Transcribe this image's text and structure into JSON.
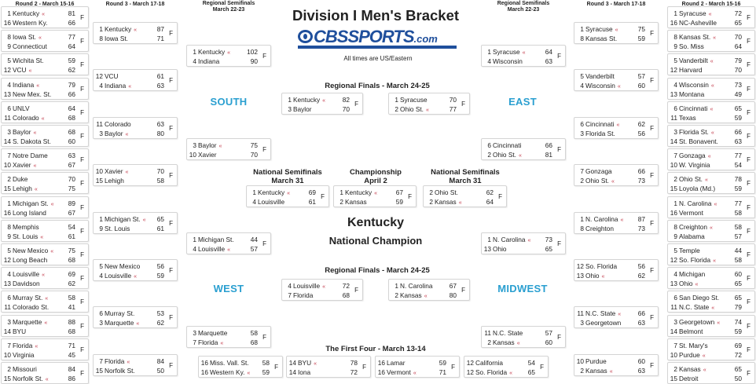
{
  "title": "Division I Men's Bracket",
  "logo_text": "CBSSPORTS.com",
  "timezone_note": "All times are US/Eastern",
  "colors": {
    "region": "#2a9fd0",
    "winner_marker": "#c23a4a",
    "logo": "#1f4f9c"
  },
  "winner_marker": "«",
  "headers": {
    "round2": "Round 2 - March 15-16",
    "round3": "Round 3 - March 17-18",
    "regional_semis": "Regional Semifinals",
    "regional_semis_date": "March 22-23",
    "regional_finals": "Regional Finals - March 24-25",
    "national_semis": "National Semifinals",
    "national_semis_date": "March 31",
    "championship": "Championship",
    "championship_date": "April 2",
    "first_four": "The First Four - March 13-14"
  },
  "regions": {
    "south": "SOUTH",
    "east": "EAST",
    "west": "WEST",
    "midwest": "MIDWEST"
  },
  "champion": {
    "team": "Kentucky",
    "label": "National Champion"
  },
  "left_round2": [
    {
      "status": "F",
      "teams": [
        {
          "seed": "1",
          "name": "Kentucky",
          "score": "81",
          "winner": true
        },
        {
          "seed": "16",
          "name": "Western Ky.",
          "score": "66"
        }
      ]
    },
    {
      "status": "F",
      "teams": [
        {
          "seed": "8",
          "name": "Iowa St.",
          "score": "77",
          "winner": true
        },
        {
          "seed": "9",
          "name": "Connecticut",
          "score": "64"
        }
      ]
    },
    {
      "status": "F",
      "teams": [
        {
          "seed": "5",
          "name": "Wichita St.",
          "score": "59"
        },
        {
          "seed": "12",
          "name": "VCU",
          "score": "62",
          "winner": true
        }
      ]
    },
    {
      "status": "F",
      "teams": [
        {
          "seed": "4",
          "name": "Indiana",
          "score": "79",
          "winner": true
        },
        {
          "seed": "13",
          "name": "New Mex. St.",
          "score": "66"
        }
      ]
    },
    {
      "status": "F",
      "teams": [
        {
          "seed": "6",
          "name": "UNLV",
          "score": "64"
        },
        {
          "seed": "11",
          "name": "Colorado",
          "score": "68",
          "winner": true
        }
      ]
    },
    {
      "status": "F",
      "teams": [
        {
          "seed": "3",
          "name": "Baylor",
          "score": "68",
          "winner": true
        },
        {
          "seed": "14",
          "name": "S. Dakota St.",
          "score": "60"
        }
      ]
    },
    {
      "status": "F",
      "teams": [
        {
          "seed": "7",
          "name": "Notre Dame",
          "score": "63"
        },
        {
          "seed": "10",
          "name": "Xavier",
          "score": "67",
          "winner": true
        }
      ]
    },
    {
      "status": "F",
      "teams": [
        {
          "seed": "2",
          "name": "Duke",
          "score": "70"
        },
        {
          "seed": "15",
          "name": "Lehigh",
          "score": "75",
          "winner": true
        }
      ]
    },
    {
      "status": "F",
      "teams": [
        {
          "seed": "1",
          "name": "Michigan St.",
          "score": "89",
          "winner": true
        },
        {
          "seed": "16",
          "name": "Long Island",
          "score": "67"
        }
      ]
    },
    {
      "status": "F",
      "teams": [
        {
          "seed": "8",
          "name": "Memphis",
          "score": "54"
        },
        {
          "seed": "9",
          "name": "St. Louis",
          "score": "61",
          "winner": true
        }
      ]
    },
    {
      "status": "F",
      "teams": [
        {
          "seed": "5",
          "name": "New Mexico",
          "score": "75",
          "winner": true
        },
        {
          "seed": "12",
          "name": "Long Beach",
          "score": "68"
        }
      ]
    },
    {
      "status": "F",
      "teams": [
        {
          "seed": "4",
          "name": "Louisville",
          "score": "69",
          "winner": true
        },
        {
          "seed": "13",
          "name": "Davidson",
          "score": "62"
        }
      ]
    },
    {
      "status": "F",
      "teams": [
        {
          "seed": "6",
          "name": "Murray St.",
          "score": "58",
          "winner": true
        },
        {
          "seed": "11",
          "name": "Colorado St.",
          "score": "41"
        }
      ]
    },
    {
      "status": "F",
      "teams": [
        {
          "seed": "3",
          "name": "Marquette",
          "score": "88",
          "winner": true
        },
        {
          "seed": "14",
          "name": "BYU",
          "score": "68"
        }
      ]
    },
    {
      "status": "F",
      "teams": [
        {
          "seed": "7",
          "name": "Florida",
          "score": "71",
          "winner": true
        },
        {
          "seed": "10",
          "name": "Virginia",
          "score": "45"
        }
      ]
    },
    {
      "status": "F",
      "teams": [
        {
          "seed": "2",
          "name": "Missouri",
          "score": "84"
        },
        {
          "seed": "15",
          "name": "Norfolk St.",
          "score": "86",
          "winner": true
        }
      ]
    }
  ],
  "left_round3": [
    {
      "status": "F",
      "teams": [
        {
          "seed": "1",
          "name": "Kentucky",
          "score": "87",
          "winner": true
        },
        {
          "seed": "8",
          "name": "Iowa St.",
          "score": "71"
        }
      ]
    },
    {
      "status": "F",
      "teams": [
        {
          "seed": "12",
          "name": "VCU",
          "score": "61"
        },
        {
          "seed": "4",
          "name": "Indiana",
          "score": "63",
          "winner": true
        }
      ]
    },
    {
      "status": "F",
      "teams": [
        {
          "seed": "11",
          "name": "Colorado",
          "score": "63"
        },
        {
          "seed": "3",
          "name": "Baylor",
          "score": "80",
          "winner": true
        }
      ]
    },
    {
      "status": "F",
      "teams": [
        {
          "seed": "10",
          "name": "Xavier",
          "score": "70",
          "winner": true
        },
        {
          "seed": "15",
          "name": "Lehigh",
          "score": "58"
        }
      ]
    },
    {
      "status": "F",
      "teams": [
        {
          "seed": "1",
          "name": "Michigan St.",
          "score": "65",
          "winner": true
        },
        {
          "seed": "9",
          "name": "St. Louis",
          "score": "61"
        }
      ]
    },
    {
      "status": "F",
      "teams": [
        {
          "seed": "5",
          "name": "New Mexico",
          "score": "56"
        },
        {
          "seed": "4",
          "name": "Louisville",
          "score": "59",
          "winner": true
        }
      ]
    },
    {
      "status": "F",
      "teams": [
        {
          "seed": "6",
          "name": "Murray St.",
          "score": "53"
        },
        {
          "seed": "3",
          "name": "Marquette",
          "score": "62",
          "winner": true
        }
      ]
    },
    {
      "status": "F",
      "teams": [
        {
          "seed": "7",
          "name": "Florida",
          "score": "84",
          "winner": true
        },
        {
          "seed": "15",
          "name": "Norfolk St.",
          "score": "50"
        }
      ]
    }
  ],
  "left_regional_semis": [
    {
      "status": "F",
      "teams": [
        {
          "seed": "1",
          "name": "Kentucky",
          "score": "102",
          "winner": true
        },
        {
          "seed": "4",
          "name": "Indiana",
          "score": "90"
        }
      ]
    },
    {
      "status": "F",
      "teams": [
        {
          "seed": "3",
          "name": "Baylor",
          "score": "75",
          "winner": true
        },
        {
          "seed": "10",
          "name": "Xavier",
          "score": "70"
        }
      ]
    },
    {
      "status": "F",
      "teams": [
        {
          "seed": "1",
          "name": "Michigan St.",
          "score": "44"
        },
        {
          "seed": "4",
          "name": "Louisville",
          "score": "57",
          "winner": true
        }
      ]
    },
    {
      "status": "F",
      "teams": [
        {
          "seed": "3",
          "name": "Marquette",
          "score": "58"
        },
        {
          "seed": "7",
          "name": "Florida",
          "score": "68",
          "winner": true
        }
      ]
    }
  ],
  "right_round2": [
    {
      "status": "F",
      "teams": [
        {
          "seed": "1",
          "name": "Syracuse",
          "score": "72",
          "winner": true
        },
        {
          "seed": "16",
          "name": "NC-Asheville",
          "score": "65"
        }
      ]
    },
    {
      "status": "F",
      "teams": [
        {
          "seed": "8",
          "name": "Kansas St.",
          "score": "70",
          "winner": true
        },
        {
          "seed": "9",
          "name": "So. Miss",
          "score": "64"
        }
      ]
    },
    {
      "status": "F",
      "teams": [
        {
          "seed": "5",
          "name": "Vanderbilt",
          "score": "79",
          "winner": true
        },
        {
          "seed": "12",
          "name": "Harvard",
          "score": "70"
        }
      ]
    },
    {
      "status": "F",
      "teams": [
        {
          "seed": "4",
          "name": "Wisconsin",
          "score": "73",
          "winner": true
        },
        {
          "seed": "13",
          "name": "Montana",
          "score": "49"
        }
      ]
    },
    {
      "status": "F",
      "teams": [
        {
          "seed": "6",
          "name": "Cincinnati",
          "score": "65",
          "winner": true
        },
        {
          "seed": "11",
          "name": "Texas",
          "score": "59"
        }
      ]
    },
    {
      "status": "F",
      "teams": [
        {
          "seed": "3",
          "name": "Florida St.",
          "score": "66",
          "winner": true
        },
        {
          "seed": "14",
          "name": "St. Bonavent.",
          "score": "63"
        }
      ]
    },
    {
      "status": "F",
      "teams": [
        {
          "seed": "7",
          "name": "Gonzaga",
          "score": "77",
          "winner": true
        },
        {
          "seed": "10",
          "name": "W. Virginia",
          "score": "54"
        }
      ]
    },
    {
      "status": "F",
      "teams": [
        {
          "seed": "2",
          "name": "Ohio St.",
          "score": "78",
          "winner": true
        },
        {
          "seed": "15",
          "name": "Loyola (Md.)",
          "score": "59"
        }
      ]
    },
    {
      "status": "F",
      "teams": [
        {
          "seed": "1",
          "name": "N. Carolina",
          "score": "77",
          "winner": true
        },
        {
          "seed": "16",
          "name": "Vermont",
          "score": "58"
        }
      ]
    },
    {
      "status": "F",
      "teams": [
        {
          "seed": "8",
          "name": "Creighton",
          "score": "58",
          "winner": true
        },
        {
          "seed": "9",
          "name": "Alabama",
          "score": "57"
        }
      ]
    },
    {
      "status": "F",
      "teams": [
        {
          "seed": "5",
          "name": "Temple",
          "score": "44"
        },
        {
          "seed": "12",
          "name": "So. Florida",
          "score": "58",
          "winner": true
        }
      ]
    },
    {
      "status": "F",
      "teams": [
        {
          "seed": "4",
          "name": "Michigan",
          "score": "60"
        },
        {
          "seed": "13",
          "name": "Ohio",
          "score": "65",
          "winner": true
        }
      ]
    },
    {
      "status": "F",
      "teams": [
        {
          "seed": "6",
          "name": "San Diego St.",
          "score": "65"
        },
        {
          "seed": "11",
          "name": "N.C. State",
          "score": "79",
          "winner": true
        }
      ]
    },
    {
      "status": "F",
      "teams": [
        {
          "seed": "3",
          "name": "Georgetown",
          "score": "74",
          "winner": true
        },
        {
          "seed": "14",
          "name": "Belmont",
          "score": "59"
        }
      ]
    },
    {
      "status": "F",
      "teams": [
        {
          "seed": "7",
          "name": "St. Mary's",
          "score": "69"
        },
        {
          "seed": "10",
          "name": "Purdue",
          "score": "72",
          "winner": true
        }
      ]
    },
    {
      "status": "F",
      "teams": [
        {
          "seed": "2",
          "name": "Kansas",
          "score": "65",
          "winner": true
        },
        {
          "seed": "15",
          "name": "Detroit",
          "score": "50"
        }
      ]
    }
  ],
  "right_round3": [
    {
      "status": "F",
      "teams": [
        {
          "seed": "1",
          "name": "Syracuse",
          "score": "75",
          "winner": true
        },
        {
          "seed": "8",
          "name": "Kansas St.",
          "score": "59"
        }
      ]
    },
    {
      "status": "F",
      "teams": [
        {
          "seed": "5",
          "name": "Vanderbilt",
          "score": "57"
        },
        {
          "seed": "4",
          "name": "Wisconsin",
          "score": "60",
          "winner": true
        }
      ]
    },
    {
      "status": "F",
      "teams": [
        {
          "seed": "6",
          "name": "Cincinnati",
          "score": "62",
          "winner": true
        },
        {
          "seed": "3",
          "name": "Florida St.",
          "score": "56"
        }
      ]
    },
    {
      "status": "F",
      "teams": [
        {
          "seed": "7",
          "name": "Gonzaga",
          "score": "66"
        },
        {
          "seed": "2",
          "name": "Ohio St.",
          "score": "73",
          "winner": true
        }
      ]
    },
    {
      "status": "F",
      "teams": [
        {
          "seed": "1",
          "name": "N. Carolina",
          "score": "87",
          "winner": true
        },
        {
          "seed": "8",
          "name": "Creighton",
          "score": "73"
        }
      ]
    },
    {
      "status": "F",
      "teams": [
        {
          "seed": "12",
          "name": "So. Florida",
          "score": "56"
        },
        {
          "seed": "13",
          "name": "Ohio",
          "score": "62",
          "winner": true
        }
      ]
    },
    {
      "status": "F",
      "teams": [
        {
          "seed": "11",
          "name": "N.C. State",
          "score": "66",
          "winner": true
        },
        {
          "seed": "3",
          "name": "Georgetown",
          "score": "63"
        }
      ]
    },
    {
      "status": "F",
      "teams": [
        {
          "seed": "10",
          "name": "Purdue",
          "score": "60"
        },
        {
          "seed": "2",
          "name": "Kansas",
          "score": "63",
          "winner": true
        }
      ]
    }
  ],
  "right_regional_semis": [
    {
      "status": "F",
      "teams": [
        {
          "seed": "1",
          "name": "Syracuse",
          "score": "64",
          "winner": true
        },
        {
          "seed": "4",
          "name": "Wisconsin",
          "score": "63"
        }
      ]
    },
    {
      "status": "F",
      "teams": [
        {
          "seed": "6",
          "name": "Cincinnati",
          "score": "66"
        },
        {
          "seed": "2",
          "name": "Ohio St.",
          "score": "81",
          "winner": true
        }
      ]
    },
    {
      "status": "F",
      "teams": [
        {
          "seed": "1",
          "name": "N. Carolina",
          "score": "73",
          "winner": true
        },
        {
          "seed": "13",
          "name": "Ohio",
          "score": "65"
        }
      ]
    },
    {
      "status": "F",
      "teams": [
        {
          "seed": "11",
          "name": "N.C. State",
          "score": "57"
        },
        {
          "seed": "2",
          "name": "Kansas",
          "score": "60",
          "winner": true
        }
      ]
    }
  ],
  "regional_finals": [
    {
      "status": "F",
      "teams": [
        {
          "seed": "1",
          "name": "Kentucky",
          "score": "82",
          "winner": true
        },
        {
          "seed": "3",
          "name": "Baylor",
          "score": "70"
        }
      ]
    },
    {
      "status": "F",
      "teams": [
        {
          "seed": "1",
          "name": "Syracuse",
          "score": "70"
        },
        {
          "seed": "2",
          "name": "Ohio St.",
          "score": "77",
          "winner": true
        }
      ]
    },
    {
      "status": "F",
      "teams": [
        {
          "seed": "4",
          "name": "Louisville",
          "score": "72",
          "winner": true
        },
        {
          "seed": "7",
          "name": "Florida",
          "score": "68"
        }
      ]
    },
    {
      "status": "F",
      "teams": [
        {
          "seed": "1",
          "name": "N. Carolina",
          "score": "67"
        },
        {
          "seed": "2",
          "name": "Kansas",
          "score": "80",
          "winner": true
        }
      ]
    }
  ],
  "final_four": [
    {
      "status": "F",
      "teams": [
        {
          "seed": "1",
          "name": "Kentucky",
          "score": "69",
          "winner": true
        },
        {
          "seed": "4",
          "name": "Louisville",
          "score": "61"
        }
      ]
    },
    {
      "status": "F",
      "teams": [
        {
          "seed": "1",
          "name": "Kentucky",
          "score": "67",
          "winner": true
        },
        {
          "seed": "2",
          "name": "Kansas",
          "score": "59"
        }
      ]
    },
    {
      "status": "F",
      "teams": [
        {
          "seed": "2",
          "name": "Ohio St.",
          "score": "62"
        },
        {
          "seed": "2",
          "name": "Kansas",
          "score": "64",
          "winner": true
        }
      ]
    }
  ],
  "first_four": [
    {
      "status": "F",
      "teams": [
        {
          "seed": "16",
          "name": "Miss. Vall. St.",
          "score": "58"
        },
        {
          "seed": "16",
          "name": "Western Ky.",
          "score": "59",
          "winner": true
        }
      ]
    },
    {
      "status": "F",
      "teams": [
        {
          "seed": "14",
          "name": "BYU",
          "score": "78",
          "winner": true
        },
        {
          "seed": "14",
          "name": "Iona",
          "score": "72"
        }
      ]
    },
    {
      "status": "F",
      "teams": [
        {
          "seed": "16",
          "name": "Lamar",
          "score": "59"
        },
        {
          "seed": "16",
          "name": "Vermont",
          "score": "71",
          "winner": true
        }
      ]
    },
    {
      "status": "F",
      "teams": [
        {
          "seed": "12",
          "name": "California",
          "score": "54"
        },
        {
          "seed": "12",
          "name": "So. Florida",
          "score": "65",
          "winner": true
        }
      ]
    }
  ]
}
